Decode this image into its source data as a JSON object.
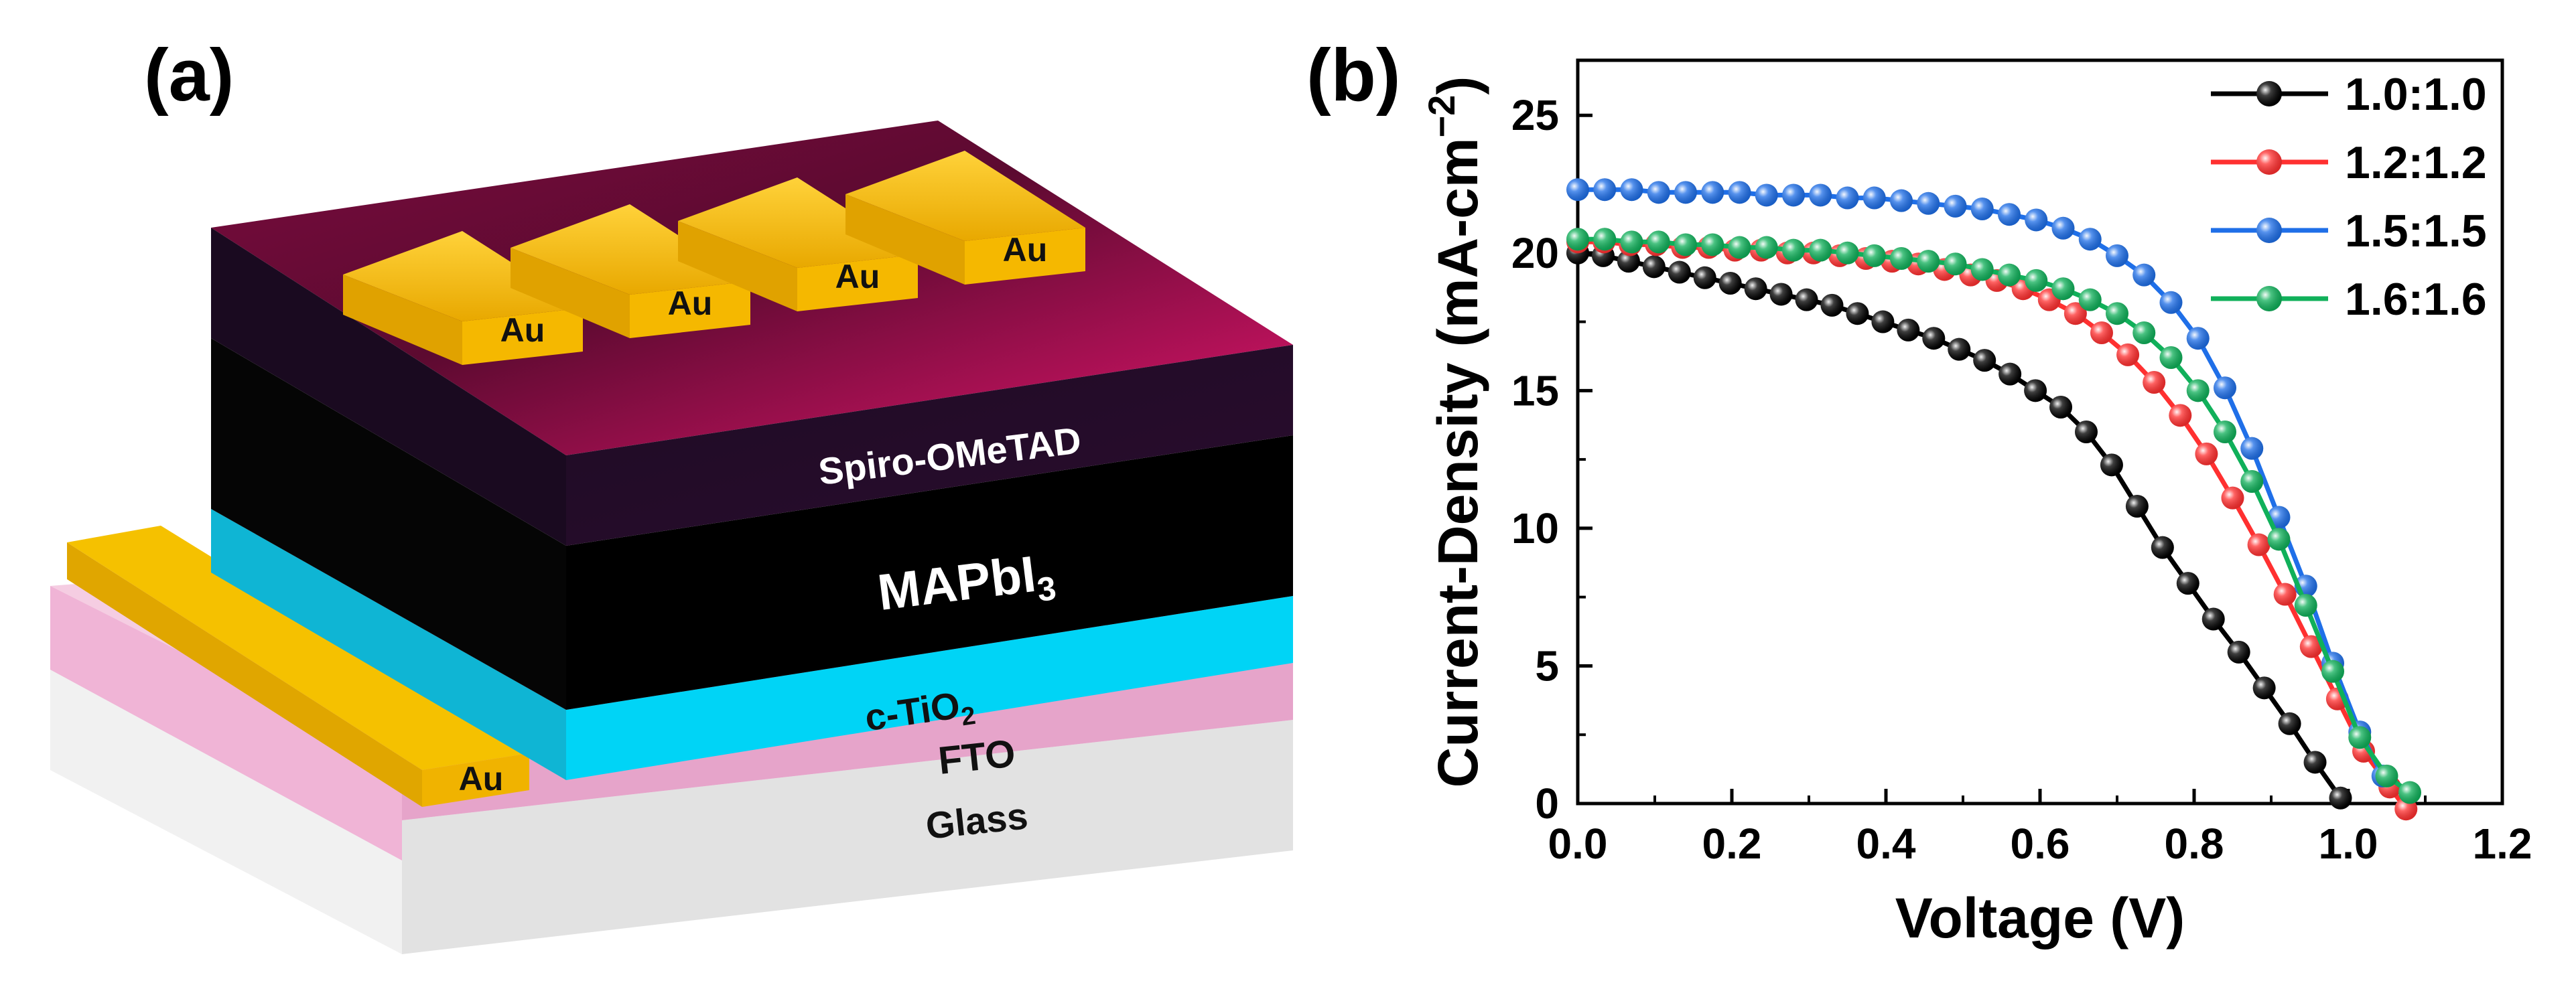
{
  "panel_a": {
    "label": "(a)",
    "layers": {
      "glass": "Glass",
      "fto": "FTO",
      "tio2_main": "c-TiO",
      "tio2_sub": "2",
      "mapbi_main": "MAPbI",
      "mapbi_sub": "3",
      "spiro": "Spiro-OMeTAD"
    },
    "electrodes": [
      "Au",
      "Au",
      "Au",
      "Au"
    ],
    "bottom_electrode": "Au",
    "colors": {
      "glass": "#e3e3e3",
      "fto": "#f0b4d6",
      "tio2": "#00d4f6",
      "mapbi": "#000000",
      "spiro": "#c4105e",
      "gold": "#f5b800"
    }
  },
  "chart_data": {
    "type": "line",
    "panel_label": "(b)",
    "title": "",
    "xlabel": "Voltage (V)",
    "ylabel": "Current-Density (mA-cm",
    "ylabel_sup": "−2",
    "ylabel_close": ")",
    "xlim": [
      0,
      1.2
    ],
    "ylim": [
      0,
      27
    ],
    "xticks": [
      0.0,
      0.2,
      0.4,
      0.6,
      0.8,
      1.0,
      1.2
    ],
    "xtick_labels": [
      "0.0",
      "0.2",
      "0.4",
      "0.6",
      "0.8",
      "1.0",
      "1.2"
    ],
    "yticks": [
      0,
      5,
      10,
      15,
      20,
      25
    ],
    "ytick_labels": [
      "0",
      "5",
      "10",
      "15",
      "20",
      "25"
    ],
    "legend_position": "top-right",
    "series": [
      {
        "name": "1.0:1.0",
        "color": "#000000",
        "x": [
          0.0,
          0.033,
          0.066,
          0.099,
          0.132,
          0.165,
          0.198,
          0.231,
          0.264,
          0.297,
          0.33,
          0.363,
          0.396,
          0.429,
          0.462,
          0.495,
          0.528,
          0.561,
          0.594,
          0.627,
          0.66,
          0.693,
          0.726,
          0.759,
          0.792,
          0.825,
          0.858,
          0.891,
          0.924,
          0.957,
          0.99
        ],
        "y": [
          20.0,
          19.9,
          19.7,
          19.5,
          19.3,
          19.1,
          18.9,
          18.7,
          18.5,
          18.3,
          18.1,
          17.8,
          17.5,
          17.2,
          16.9,
          16.5,
          16.1,
          15.6,
          15.0,
          14.4,
          13.5,
          12.3,
          10.8,
          9.3,
          8.0,
          6.7,
          5.5,
          4.2,
          2.9,
          1.5,
          0.2
        ]
      },
      {
        "name": "1.2:1.2",
        "color": "#ff3030",
        "x": [
          0.0,
          0.034,
          0.068,
          0.102,
          0.136,
          0.17,
          0.204,
          0.238,
          0.272,
          0.306,
          0.34,
          0.374,
          0.408,
          0.442,
          0.476,
          0.51,
          0.544,
          0.578,
          0.612,
          0.646,
          0.68,
          0.714,
          0.748,
          0.782,
          0.816,
          0.85,
          0.884,
          0.918,
          0.952,
          0.986,
          1.02,
          1.054,
          1.075
        ],
        "y": [
          20.4,
          20.4,
          20.3,
          20.3,
          20.2,
          20.2,
          20.1,
          20.1,
          20.0,
          20.0,
          19.9,
          19.8,
          19.7,
          19.6,
          19.4,
          19.2,
          19.0,
          18.7,
          18.3,
          17.8,
          17.1,
          16.3,
          15.3,
          14.1,
          12.7,
          11.1,
          9.4,
          7.6,
          5.7,
          3.8,
          1.9,
          0.6,
          -0.2
        ]
      },
      {
        "name": "1.5:1.5",
        "color": "#1f6fe8",
        "x": [
          0.0,
          0.035,
          0.07,
          0.105,
          0.14,
          0.175,
          0.21,
          0.245,
          0.28,
          0.315,
          0.35,
          0.385,
          0.42,
          0.455,
          0.49,
          0.525,
          0.56,
          0.595,
          0.63,
          0.665,
          0.7,
          0.735,
          0.77,
          0.805,
          0.84,
          0.875,
          0.91,
          0.945,
          0.98,
          1.015,
          1.045
        ],
        "y": [
          22.3,
          22.3,
          22.3,
          22.2,
          22.2,
          22.2,
          22.2,
          22.1,
          22.1,
          22.1,
          22.0,
          22.0,
          21.9,
          21.8,
          21.7,
          21.6,
          21.4,
          21.2,
          20.9,
          20.5,
          19.9,
          19.2,
          18.2,
          16.9,
          15.1,
          12.9,
          10.4,
          7.9,
          5.1,
          2.6,
          1.0
        ]
      },
      {
        "name": "1.6:1.6",
        "color": "#10b05a",
        "x": [
          0.0,
          0.035,
          0.07,
          0.105,
          0.14,
          0.175,
          0.21,
          0.245,
          0.28,
          0.315,
          0.35,
          0.385,
          0.42,
          0.455,
          0.49,
          0.525,
          0.56,
          0.595,
          0.63,
          0.665,
          0.7,
          0.735,
          0.77,
          0.805,
          0.84,
          0.875,
          0.91,
          0.945,
          0.98,
          1.015,
          1.05,
          1.08
        ],
        "y": [
          20.5,
          20.5,
          20.4,
          20.4,
          20.3,
          20.3,
          20.2,
          20.2,
          20.1,
          20.1,
          20.0,
          19.9,
          19.8,
          19.7,
          19.6,
          19.4,
          19.2,
          19.0,
          18.7,
          18.3,
          17.8,
          17.1,
          16.2,
          15.0,
          13.5,
          11.7,
          9.6,
          7.2,
          4.8,
          2.4,
          1.0,
          0.4
        ]
      }
    ]
  }
}
